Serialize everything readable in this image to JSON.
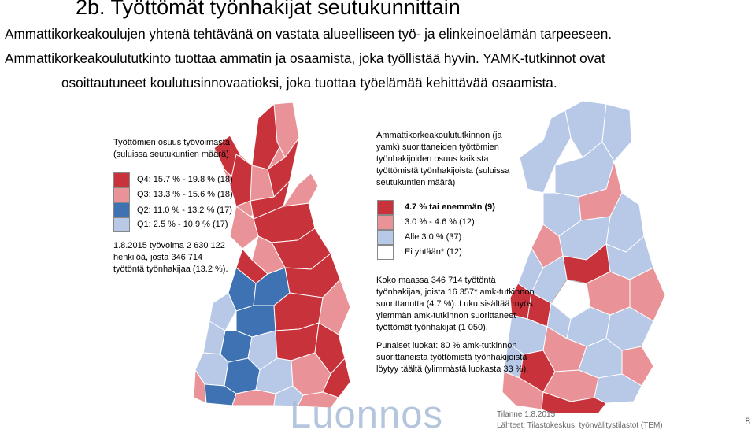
{
  "header": {
    "title": "2b. Työttömät työnhakijat seutukunnittain",
    "line1": "Ammattikorkeakoulujen yhtenä tehtävänä on vastata alueelliseen työ- ja elinkeinoelämän tarpeeseen.",
    "line2": "Ammattikorkeakoulututkinto tuottaa ammatin ja osaamista, joka työllistää hyvin. YAMK-tutkinnot ovat",
    "line3": "osoittautuneet koulutusinnovaatioksi, joka tuottaa työelämää kehittävää osaamista."
  },
  "left_map": {
    "legend_title_1": "Työttömien osuus työvoimasta",
    "legend_title_2": "(suluissa seutukuntien määrä)",
    "classes": [
      {
        "label": "Q4: 15.7 % - 19.8 %  (18)",
        "color": "#c8323a"
      },
      {
        "label": "Q3: 13.3 % - 15.6 %  (18)",
        "color": "#e99398"
      },
      {
        "label": "Q2: 11.0 % - 13.2 %  (17)",
        "color": "#3f72b2"
      },
      {
        "label": "Q1:   2.5 % - 10.9 %  (17)",
        "color": "#b8c8e7"
      }
    ],
    "note_1": "1.8.2015 työvoima 2 630 122",
    "note_2": "henkilöä, josta 346 714",
    "note_3": "työtöntä työnhakijaa (13.2 %)."
  },
  "right_map": {
    "legend_title_1": "Ammattikorkeakoulututkinnon (ja",
    "legend_title_2": "yamk) suorittaneiden työttömien",
    "legend_title_3": "työnhakijoiden osuus kaikista",
    "legend_title_4": "työttömistä työnhakijoista (suluissa",
    "legend_title_5": "seutukuntien määrä)",
    "classes": [
      {
        "label": "4.7 % tai enemmän  (9)",
        "color": "#c8323a"
      },
      {
        "label": "3.0 % - 4.6 %  (12)",
        "color": "#e99398"
      },
      {
        "label": "Alle 3.0 %  (37)",
        "color": "#b8c8e7"
      },
      {
        "label": "Ei yhtään*  (12)",
        "color": "#ffffff"
      }
    ],
    "note_a1": "Koko maassa 346 714 työtöntä",
    "note_a2": "työnhakijaa, joista 16 357* amk-tutkinnon",
    "note_a3": "suorittanutta (4.7 %). Luku sisältää myös",
    "note_a4": "ylemmän amk-tutkinnon suorittaneet",
    "note_a5": "työttömät työnhakijat (1 050).",
    "note_b1": "Punaiset luokat: 80 % amk-tutkinnon",
    "note_b2": "suorittaneista työttömistä työnhakijoista",
    "note_b3": "löytyy täältä (ylimmästä luokasta 33 %)."
  },
  "footer": {
    "watermark": "Luonnos",
    "date": "Tilanne 1.8.2015",
    "sources": "Lähteet: Tilastokeskus, työnvälitystilastot (TEM)",
    "page_number": "8"
  },
  "colors": {
    "q4": "#c8323a",
    "q3": "#e99398",
    "q2": "#3f72b2",
    "q1": "#b8c8e7",
    "border": "#ffffff"
  }
}
